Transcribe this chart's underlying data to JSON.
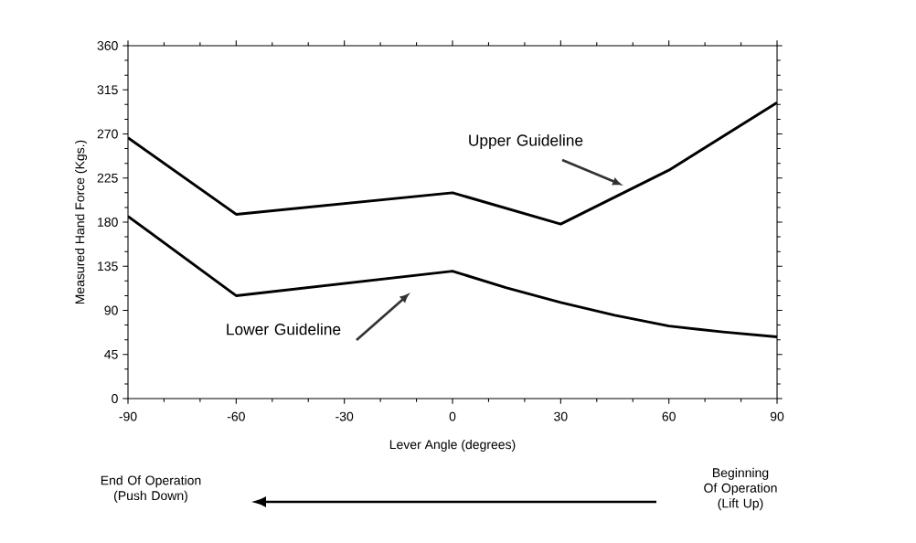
{
  "chart_data": {
    "type": "line",
    "xlabel": "Lever Angle (degrees)",
    "ylabel": "Measured Hand Force (Kgs.)",
    "xlim": [
      -90,
      90
    ],
    "xticks": [
      -90,
      -60,
      -30,
      0,
      30,
      60,
      90
    ],
    "ylim": [
      0,
      360
    ],
    "yticks": [
      0,
      45,
      90,
      135,
      180,
      225,
      270,
      315,
      360
    ],
    "grid": false,
    "marker": "none",
    "line_style": "solid",
    "series": [
      {
        "color": "#000000",
        "x": [
          -90,
          -60,
          0,
          30,
          60,
          90
        ],
        "values": [
          266,
          188,
          210,
          178,
          233,
          302
        ]
      },
      {
        "color": "#000000",
        "x": [
          -90,
          -60,
          0,
          15,
          30,
          45,
          60,
          75,
          90
        ],
        "values": [
          186,
          105,
          130,
          113,
          98,
          85,
          74,
          68,
          63
        ]
      }
    ],
    "annotations": [
      "Upper Guideline",
      "Lower Guideline",
      "End Of Operation (Push Down)",
      "Beginning Of Operation (Lift Up)"
    ]
  }
}
